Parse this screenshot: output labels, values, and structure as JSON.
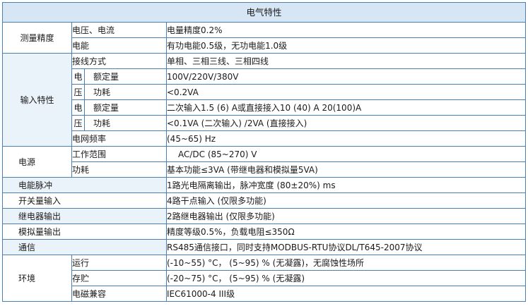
{
  "title": "电气特性",
  "rows": {
    "measure": {
      "label": "测量精度",
      "voltage_current": {
        "name": "电压、电流",
        "value": "电量精度0.2%"
      },
      "energy": {
        "name": "电能",
        "value": "有功电能0.5级，无功电能1.0级"
      }
    },
    "input": {
      "label": "输入特性",
      "wiring": {
        "name": "接线方式",
        "value": "单相、三相三线、三相四线"
      },
      "voltage": {
        "char_top": "电",
        "char_bottom": "压",
        "rated": {
          "name": "额定量",
          "value": "100V/220V/380V"
        },
        "power": {
          "name": "功耗",
          "value": "<0.2VA"
        }
      },
      "current": {
        "char_top": "电",
        "char_bottom": "压",
        "rated": {
          "name": "额定量",
          "value": "二次输入1.5 (6) A或直接接入10 (40) A  20(100)A"
        },
        "power": {
          "name": "功耗",
          "value": "<0.1VA (二次输入) /2VA (直接接入)"
        }
      },
      "frequency": {
        "name": "电网频率",
        "value": "(45~65) Hz"
      }
    },
    "power_supply": {
      "label": "电源",
      "range": {
        "name": "工作范围",
        "value": "AC/DC (85~270) V"
      },
      "consumption": {
        "name": "功耗",
        "value": "基本功能≤3VA (带继电器和模拟量5VA)"
      }
    },
    "pulse": {
      "label": "电能脉冲",
      "value": "1路光电隔离输出，脉冲宽度 (80±20%) ms"
    },
    "switch_input": {
      "label": "开关量输入",
      "value": "4路干点输入 (仅限多功能)"
    },
    "relay_output": {
      "label": "继电器输出",
      "value": "2路继电器输出 (仅限多功能)"
    },
    "analog_output": {
      "label": "模拟量输出",
      "value": "精度等级0.5%，负载电阻≤350Ω"
    },
    "comm": {
      "label": "通信",
      "value": "RS485通信接口，同时支持MODBUS-RTU协议DL/T645-2007协议"
    },
    "environment": {
      "label": "环境",
      "operation": {
        "name": "运行",
        "value": "(-10~55) °C， (5~95) % (无凝露)，无腐蚀性场所"
      },
      "storage": {
        "name": "存贮",
        "value": "(-20~75) °C， (5~95) % (无凝露)"
      },
      "emc": {
        "name": "电磁兼容",
        "value": "IEC61000-4  III级"
      }
    }
  },
  "colors": {
    "header_bg": "#d7e6f4",
    "label_bg": "#eaf2fa",
    "border": "#4a7fb0"
  }
}
